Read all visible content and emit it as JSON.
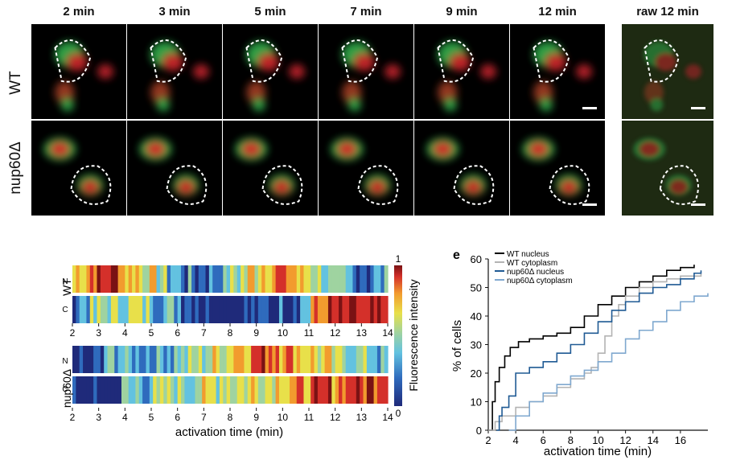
{
  "time_labels": [
    "2 min",
    "3 min",
    "5 min",
    "7 min",
    "9 min",
    "12 min",
    "raw 12 min"
  ],
  "row_labels": [
    "WT",
    "nup60Δ"
  ],
  "heatmap": {
    "groups": [
      {
        "label": "WT",
        "rows": [
          {
            "label": "N"
          },
          {
            "label": "C"
          }
        ]
      },
      {
        "label": "nup60Δ",
        "rows": [
          {
            "label": "N"
          },
          {
            "label": "C"
          }
        ]
      }
    ],
    "x_ticks": [
      "2",
      "3",
      "4",
      "5",
      "6",
      "7",
      "8",
      "9",
      "10",
      "11",
      "12",
      "13",
      "14"
    ],
    "xlabel": "activation time (min)",
    "colorbar_label": "Fluorescence intensity",
    "colorbar_ticks": [
      "1",
      "0"
    ]
  },
  "chart_data": {
    "type": "line",
    "panel_label": "e",
    "xlabel": "activation time (min)",
    "ylabel": "% of cells",
    "xlim": [
      2,
      18
    ],
    "ylim": [
      0,
      60
    ],
    "x_ticks": [
      2,
      4,
      6,
      8,
      10,
      12,
      14,
      16
    ],
    "y_ticks": [
      0,
      10,
      20,
      30,
      40,
      50,
      60
    ],
    "series": [
      {
        "name": "WT nucleus",
        "color": "#000000",
        "x": [
          2.0,
          2.3,
          2.5,
          2.8,
          3.2,
          3.6,
          4.2,
          5.0,
          6.0,
          7.0,
          8.0,
          9.0,
          10.0,
          11.0,
          12.0,
          13.0,
          14.0,
          15.0,
          16.0,
          17.0
        ],
        "y": [
          0,
          10,
          17,
          22,
          26,
          29,
          31,
          32,
          33,
          34,
          36,
          40,
          44,
          47,
          50,
          52,
          54,
          56,
          57,
          58
        ]
      },
      {
        "name": "WT cytoplasm",
        "color": "#b3b3b3",
        "x": [
          2.0,
          2.5,
          3.0,
          4.0,
          5.0,
          6.0,
          7.0,
          8.0,
          9.0,
          9.5,
          10.0,
          10.5,
          11.0,
          11.5,
          12.0,
          13.0,
          14.0,
          15.0,
          16.0,
          17.5
        ],
        "y": [
          0,
          3,
          5,
          8,
          10,
          12,
          15,
          18,
          20,
          22,
          27,
          33,
          40,
          44,
          47,
          50,
          52,
          53,
          54,
          55
        ]
      },
      {
        "name": "nup60Δ nucleus",
        "color": "#1f5a94",
        "x": [
          2.6,
          2.8,
          3.0,
          3.5,
          4.0,
          5.0,
          6.0,
          7.0,
          8.0,
          9.0,
          10.0,
          11.0,
          12.0,
          13.0,
          14.0,
          15.0,
          16.0,
          17.0,
          17.5
        ],
        "y": [
          0,
          5,
          8,
          12,
          20,
          22,
          24,
          27,
          30,
          34,
          38,
          42,
          45,
          48,
          50,
          51,
          53,
          55,
          56
        ]
      },
      {
        "name": "nup60Δ cytoplasm",
        "color": "#7fa8cf",
        "x": [
          3.5,
          4.0,
          5.0,
          6.0,
          7.0,
          8.0,
          9.0,
          10.0,
          11.0,
          12.0,
          13.0,
          14.0,
          15.0,
          16.0,
          17.0,
          18.0
        ],
        "y": [
          0,
          5,
          10,
          13,
          16,
          19,
          21,
          24,
          27,
          32,
          35,
          38,
          42,
          45,
          47,
          48
        ]
      }
    ]
  }
}
